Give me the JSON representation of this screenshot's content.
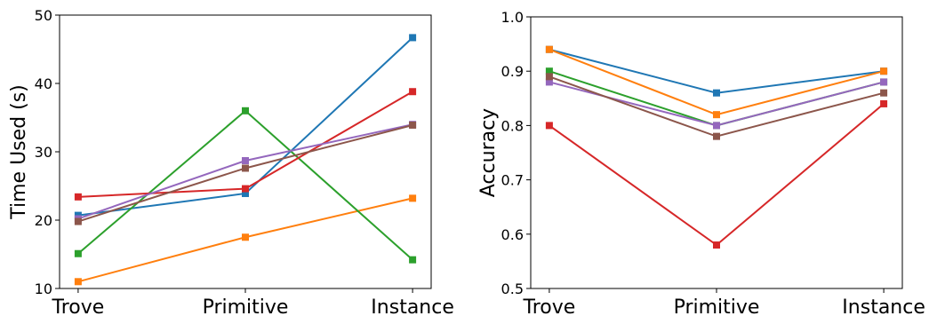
{
  "chart_data": [
    {
      "type": "line",
      "categories": [
        "Trove",
        "Primitive",
        "Instance"
      ],
      "ylabel": "Time Used (s)",
      "xlabel": "",
      "ylim": [
        10,
        50
      ],
      "yticks": [
        "10",
        "20",
        "30",
        "40",
        "50"
      ],
      "grid": false,
      "series": [
        {
          "color": "#1f77b4",
          "values": [
            20.7,
            23.9,
            46.7
          ]
        },
        {
          "color": "#ff7f0e",
          "values": [
            11.0,
            17.5,
            23.2
          ]
        },
        {
          "color": "#2ca02c",
          "values": [
            15.1,
            36.0,
            14.2
          ]
        },
        {
          "color": "#d62728",
          "values": [
            23.4,
            24.6,
            38.8
          ]
        },
        {
          "color": "#9467bd",
          "values": [
            20.2,
            28.7,
            34.0
          ]
        },
        {
          "color": "#8c564b",
          "values": [
            19.8,
            27.6,
            33.9
          ]
        }
      ]
    },
    {
      "type": "line",
      "categories": [
        "Trove",
        "Primitive",
        "Instance"
      ],
      "ylabel": "Accuracy",
      "xlabel": "",
      "ylim": [
        0.5,
        1.0
      ],
      "yticks": [
        "0.5",
        "0.6",
        "0.7",
        "0.8",
        "0.9",
        "1.0"
      ],
      "grid": false,
      "series": [
        {
          "color": "#1f77b4",
          "values": [
            0.94,
            0.86,
            0.9
          ]
        },
        {
          "color": "#ff7f0e",
          "values": [
            0.94,
            0.82,
            0.9
          ]
        },
        {
          "color": "#2ca02c",
          "values": [
            0.9,
            0.8,
            0.88
          ]
        },
        {
          "color": "#d62728",
          "values": [
            0.8,
            0.58,
            0.84
          ]
        },
        {
          "color": "#9467bd",
          "values": [
            0.88,
            0.8,
            0.88
          ]
        },
        {
          "color": "#8c564b",
          "values": [
            0.89,
            0.78,
            0.86
          ]
        }
      ]
    }
  ]
}
